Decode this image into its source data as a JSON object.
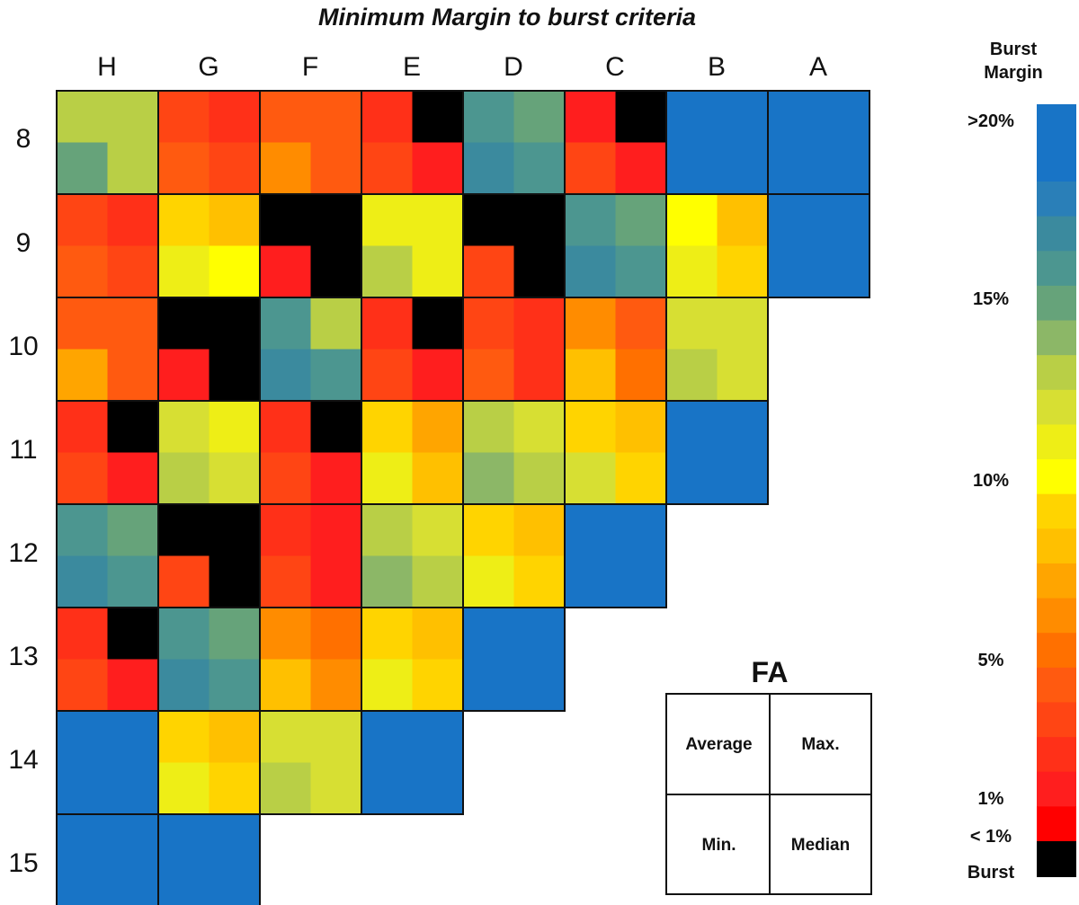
{
  "chart_data": {
    "type": "heatmap",
    "title": "Minimum Margin to burst criteria",
    "columns": [
      "H",
      "G",
      "F",
      "E",
      "D",
      "C",
      "B",
      "A"
    ],
    "rows": [
      "8",
      "9",
      "10",
      "11",
      "12",
      "13",
      "14",
      "15"
    ],
    "value_unit": "percent burst margin",
    "cell_layout": "each cell holds a 2x2 block [[Average, Max.], [Min., Median]]; -1 = Burst, 25 = >20%",
    "assemblies": [
      {
        "row": "8",
        "col": "H",
        "values": [
          [
            15,
            14
          ],
          [
            17,
            15
          ]
        ]
      },
      {
        "row": "8",
        "col": "G",
        "values": [
          [
            3,
            2
          ],
          [
            4,
            3
          ]
        ]
      },
      {
        "row": "8",
        "col": "F",
        "values": [
          [
            5,
            4
          ],
          [
            7,
            5
          ]
        ]
      },
      {
        "row": "8",
        "col": "E",
        "values": [
          [
            2,
            -1
          ],
          [
            3,
            1
          ]
        ]
      },
      {
        "row": "8",
        "col": "D",
        "values": [
          [
            18,
            17
          ],
          [
            19,
            18
          ]
        ]
      },
      {
        "row": "8",
        "col": "C",
        "values": [
          [
            1,
            -1
          ],
          [
            3,
            1
          ]
        ]
      },
      {
        "row": "8",
        "col": "B",
        "values": [
          [
            25,
            25
          ],
          [
            25,
            25
          ]
        ]
      },
      {
        "row": "8",
        "col": "A",
        "values": [
          [
            25,
            25
          ],
          [
            25,
            25
          ]
        ]
      },
      {
        "row": "9",
        "col": "H",
        "values": [
          [
            3,
            2
          ],
          [
            4,
            3
          ]
        ]
      },
      {
        "row": "9",
        "col": "G",
        "values": [
          [
            10,
            9
          ],
          [
            12,
            11
          ]
        ]
      },
      {
        "row": "9",
        "col": "F",
        "values": [
          [
            -1,
            -1
          ],
          [
            1,
            -1
          ]
        ]
      },
      {
        "row": "9",
        "col": "E",
        "values": [
          [
            12,
            12
          ],
          [
            14,
            12
          ]
        ]
      },
      {
        "row": "9",
        "col": "D",
        "values": [
          [
            -1,
            -1
          ],
          [
            3,
            -1
          ]
        ]
      },
      {
        "row": "9",
        "col": "C",
        "values": [
          [
            18,
            17
          ],
          [
            19,
            18
          ]
        ]
      },
      {
        "row": "9",
        "col": "B",
        "values": [
          [
            11,
            9
          ],
          [
            12,
            10
          ]
        ]
      },
      {
        "row": "9",
        "col": "A",
        "values": [
          [
            25,
            25
          ],
          [
            25,
            25
          ]
        ]
      },
      {
        "row": "10",
        "col": "H",
        "values": [
          [
            5,
            4
          ],
          [
            8,
            4
          ]
        ]
      },
      {
        "row": "10",
        "col": "G",
        "values": [
          [
            -1,
            -1
          ],
          [
            1,
            -1
          ]
        ]
      },
      {
        "row": "10",
        "col": "F",
        "values": [
          [
            18,
            15
          ],
          [
            19,
            18
          ]
        ]
      },
      {
        "row": "10",
        "col": "E",
        "values": [
          [
            2,
            -1
          ],
          [
            3,
            1
          ]
        ]
      },
      {
        "row": "10",
        "col": "D",
        "values": [
          [
            3,
            2
          ],
          [
            4,
            2
          ]
        ]
      },
      {
        "row": "10",
        "col": "C",
        "values": [
          [
            7,
            5
          ],
          [
            9,
            6
          ]
        ]
      },
      {
        "row": "10",
        "col": "B",
        "values": [
          [
            13,
            13
          ],
          [
            15,
            13
          ]
        ]
      },
      {
        "row": "11",
        "col": "H",
        "values": [
          [
            2,
            -1
          ],
          [
            3,
            1
          ]
        ]
      },
      {
        "row": "11",
        "col": "G",
        "values": [
          [
            13,
            12
          ],
          [
            14,
            13
          ]
        ]
      },
      {
        "row": "11",
        "col": "F",
        "values": [
          [
            2,
            -1
          ],
          [
            3,
            1
          ]
        ]
      },
      {
        "row": "11",
        "col": "E",
        "values": [
          [
            10,
            8
          ],
          [
            12,
            9
          ]
        ]
      },
      {
        "row": "11",
        "col": "D",
        "values": [
          [
            14,
            13
          ],
          [
            16,
            14
          ]
        ]
      },
      {
        "row": "11",
        "col": "C",
        "values": [
          [
            10,
            9
          ],
          [
            13,
            10
          ]
        ]
      },
      {
        "row": "11",
        "col": "B",
        "values": [
          [
            25,
            25
          ],
          [
            25,
            25
          ]
        ]
      },
      {
        "row": "12",
        "col": "H",
        "values": [
          [
            18,
            17
          ],
          [
            19,
            18
          ]
        ]
      },
      {
        "row": "12",
        "col": "G",
        "values": [
          [
            -1,
            -1
          ],
          [
            3,
            -1
          ]
        ]
      },
      {
        "row": "12",
        "col": "F",
        "values": [
          [
            2,
            1
          ],
          [
            3,
            1
          ]
        ]
      },
      {
        "row": "12",
        "col": "E",
        "values": [
          [
            14,
            13
          ],
          [
            16,
            14
          ]
        ]
      },
      {
        "row": "12",
        "col": "D",
        "values": [
          [
            10,
            9
          ],
          [
            12,
            10
          ]
        ]
      },
      {
        "row": "12",
        "col": "C",
        "values": [
          [
            25,
            25
          ],
          [
            25,
            25
          ]
        ]
      },
      {
        "row": "13",
        "col": "H",
        "values": [
          [
            2,
            -1
          ],
          [
            3,
            1
          ]
        ]
      },
      {
        "row": "13",
        "col": "G",
        "values": [
          [
            18,
            17
          ],
          [
            19,
            18
          ]
        ]
      },
      {
        "row": "13",
        "col": "F",
        "values": [
          [
            7,
            6
          ],
          [
            9,
            7
          ]
        ]
      },
      {
        "row": "13",
        "col": "E",
        "values": [
          [
            10,
            9
          ],
          [
            12,
            10
          ]
        ]
      },
      {
        "row": "13",
        "col": "D",
        "values": [
          [
            25,
            25
          ],
          [
            25,
            25
          ]
        ]
      },
      {
        "row": "14",
        "col": "H",
        "values": [
          [
            25,
            25
          ],
          [
            25,
            25
          ]
        ]
      },
      {
        "row": "14",
        "col": "G",
        "values": [
          [
            10,
            9
          ],
          [
            12,
            10
          ]
        ]
      },
      {
        "row": "14",
        "col": "F",
        "values": [
          [
            13,
            13
          ],
          [
            15,
            13
          ]
        ]
      },
      {
        "row": "14",
        "col": "E",
        "values": [
          [
            25,
            25
          ],
          [
            25,
            25
          ]
        ]
      },
      {
        "row": "15",
        "col": "H",
        "values": [
          [
            25,
            25
          ],
          [
            25,
            25
          ]
        ]
      },
      {
        "row": "15",
        "col": "G",
        "values": [
          [
            25,
            25
          ],
          [
            25,
            25
          ]
        ]
      }
    ],
    "legend": {
      "title_line1": "Burst",
      "title_line2": "Margin",
      "ticks": [
        ">20%",
        "15%",
        "10%",
        "5%",
        "1%",
        "< 1%",
        "Burst"
      ],
      "colors": {
        "over_20": "#1874c6",
        "burst": "#000000",
        "stops": [
          "#2a7fb8",
          "#3b8a9e",
          "#4c9690",
          "#66a37a",
          "#8cb767",
          "#b9cf46",
          "#d7df33",
          "#eeee16",
          "#ffff00",
          "#ffd400",
          "#ffc000",
          "#ffa500",
          "#ff8c00",
          "#ff7000",
          "#ff5a10",
          "#ff4514",
          "#ff3018",
          "#ff1e1e",
          "#ff0000"
        ]
      }
    },
    "key": {
      "title": "FA",
      "top_left": "Average",
      "top_right": "Max.",
      "bottom_left": "Min.",
      "bottom_right": "Median"
    }
  }
}
